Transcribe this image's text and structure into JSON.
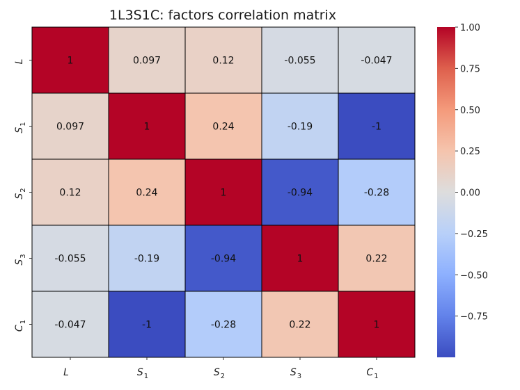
{
  "chart_data": {
    "type": "heatmap",
    "title": "1L3S1C: factors correlation matrix",
    "row_labels": [
      {
        "main": "L",
        "sub": ""
      },
      {
        "main": "S",
        "sub": "1"
      },
      {
        "main": "S",
        "sub": "2"
      },
      {
        "main": "S",
        "sub": "3"
      },
      {
        "main": "C",
        "sub": "1"
      }
    ],
    "col_labels": [
      {
        "main": "L",
        "sub": ""
      },
      {
        "main": "S",
        "sub": "1"
      },
      {
        "main": "S",
        "sub": "2"
      },
      {
        "main": "S",
        "sub": "3"
      },
      {
        "main": "C",
        "sub": "1"
      }
    ],
    "values": [
      [
        1,
        0.097,
        0.12,
        -0.055,
        -0.047
      ],
      [
        0.097,
        1,
        0.24,
        -0.19,
        -1
      ],
      [
        0.12,
        0.24,
        1,
        -0.94,
        -0.28
      ],
      [
        -0.055,
        -0.19,
        -0.94,
        1,
        0.22
      ],
      [
        -0.047,
        -1,
        -0.28,
        0.22,
        1
      ]
    ],
    "value_labels": [
      [
        "1",
        "0.097",
        "0.12",
        "-0.055",
        "-0.047"
      ],
      [
        "0.097",
        "1",
        "0.24",
        "-0.19",
        "-1"
      ],
      [
        "0.12",
        "0.24",
        "1",
        "-0.94",
        "-0.28"
      ],
      [
        "-0.055",
        "-0.19",
        "-0.94",
        "1",
        "0.22"
      ],
      [
        "-0.047",
        "-1",
        "-0.28",
        "0.22",
        "1"
      ]
    ],
    "colormap": "coolwarm",
    "vmin": -1,
    "vmax": 1,
    "colorbar": {
      "ticks": [
        1.0,
        0.75,
        0.5,
        0.25,
        0.0,
        -0.25,
        -0.5,
        -0.75
      ],
      "tick_labels": [
        "1.00",
        "0.75",
        "0.50",
        "0.25",
        "0.00",
        "−0.25",
        "−0.50",
        "−0.75"
      ]
    }
  }
}
